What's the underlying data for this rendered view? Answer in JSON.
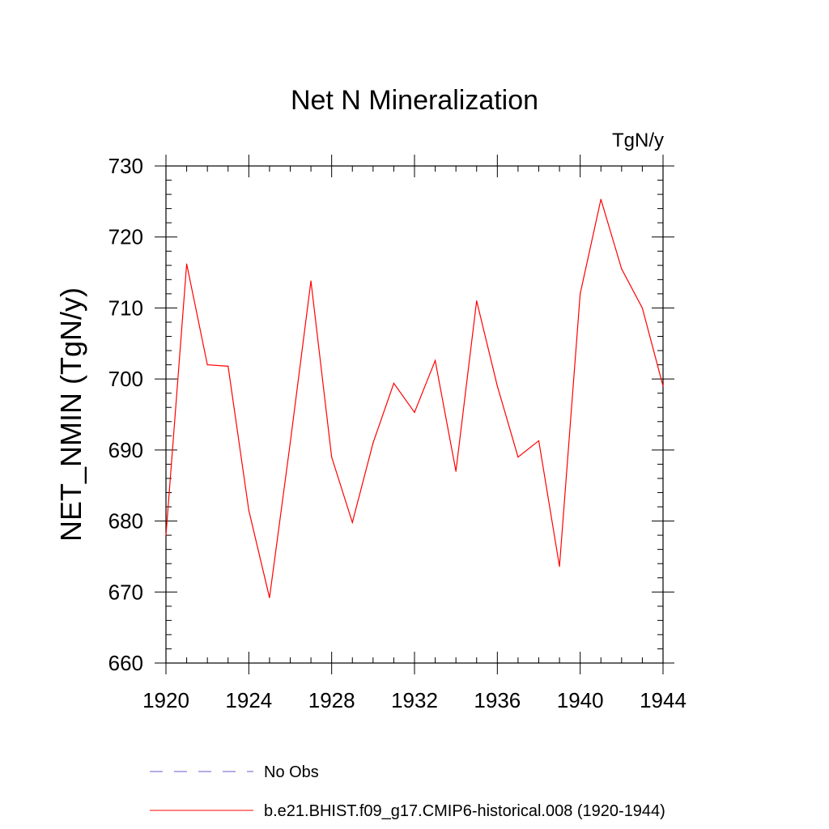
{
  "chart_data": {
    "type": "line",
    "title": "Net N Mineralization",
    "units_label": "TgN/y",
    "ylabel": "NET_NMIN  (TgN/y)",
    "xlabel": "",
    "xlim": [
      1920,
      1944
    ],
    "ylim": [
      660,
      730
    ],
    "x_ticks": [
      1920,
      1924,
      1928,
      1932,
      1936,
      1940,
      1944
    ],
    "y_ticks": [
      660,
      670,
      680,
      690,
      700,
      710,
      720,
      730
    ],
    "x_minor_step": 1,
    "y_minor_step": 2,
    "x": [
      1920,
      1921,
      1922,
      1923,
      1924,
      1925,
      1926,
      1927,
      1928,
      1929,
      1930,
      1931,
      1932,
      1933,
      1934,
      1935,
      1936,
      1937,
      1938,
      1939,
      1940,
      1941,
      1942,
      1943,
      1944
    ],
    "series": [
      {
        "name": "b.e21.BHIST.f09_g17.CMIP6-historical.008 (1920-1944)",
        "color": "#ff0000",
        "style": "solid",
        "values": [
          678.0,
          716.2,
          702.0,
          701.8,
          681.5,
          669.2,
          691.0,
          713.8,
          689.0,
          679.8,
          691.0,
          699.4,
          695.3,
          702.6,
          687.0,
          711.0,
          699.0,
          689.0,
          691.3,
          673.6,
          712.0,
          725.3,
          715.5,
          710.0,
          699.0
        ]
      }
    ],
    "legend": [
      {
        "label": "No Obs",
        "color": "#6a5acd",
        "style": "dashed"
      },
      {
        "label": "b.e21.BHIST.f09_g17.CMIP6-historical.008 (1920-1944)",
        "color": "#ff0000",
        "style": "solid"
      }
    ],
    "legend_position": "bottom"
  }
}
